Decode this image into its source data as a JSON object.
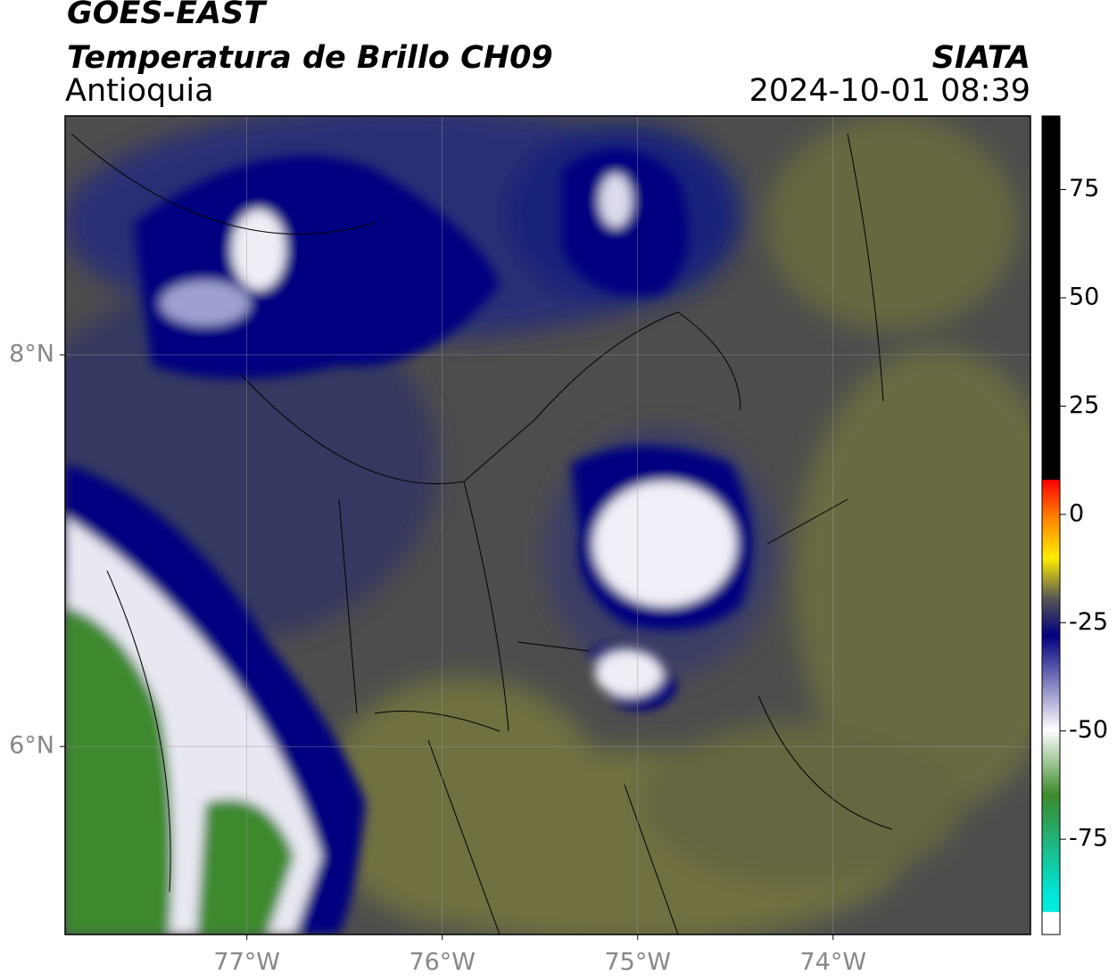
{
  "header": {
    "satellite": "GOES-EAST",
    "product": "Temperatura de Brillo CH09",
    "region": "Antioquia",
    "source": "SIATA",
    "datetime": "2024-10-01 08:39"
  },
  "map": {
    "xlim": [
      -77.93,
      -72.99
    ],
    "ylim": [
      5.04,
      9.22
    ],
    "grid": true,
    "xticks": [
      {
        "value": -77,
        "label": "77°W"
      },
      {
        "value": -76,
        "label": "76°W"
      },
      {
        "value": -75,
        "label": "75°W"
      },
      {
        "value": -74,
        "label": "74°W"
      }
    ],
    "yticks": [
      {
        "value": 8,
        "label": "8°N"
      },
      {
        "value": 6,
        "label": "6°N"
      }
    ]
  },
  "colorbar": {
    "lim": [
      -97,
      92
    ],
    "ticks": [
      75,
      50,
      25,
      0,
      -25,
      -50,
      -75
    ]
  }
}
